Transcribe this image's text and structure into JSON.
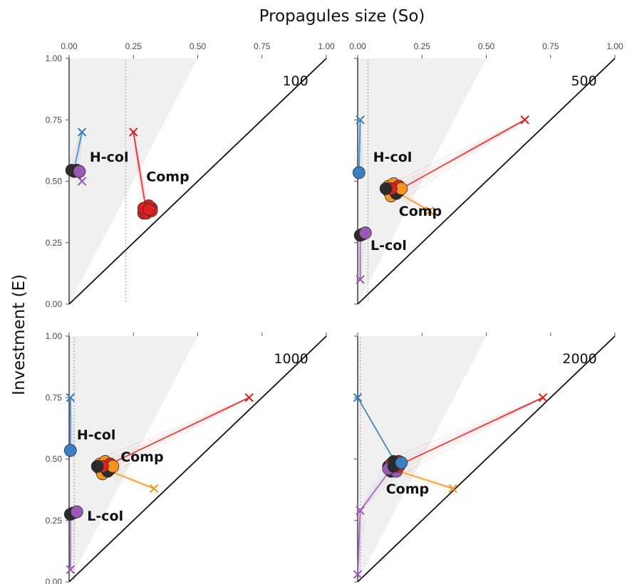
{
  "figure": {
    "xlabel": "Propagules size (So)",
    "ylabel": "Investment (E)"
  },
  "chart_data": {
    "type": "scatter",
    "xlabel": "Propagules size (So)",
    "ylabel": "Investment (E)",
    "xlim": [
      0,
      1
    ],
    "ylim": [
      0,
      1
    ],
    "x_ticks": [
      "0.00",
      "0.25",
      "0.50",
      "0.75",
      "1.00"
    ],
    "y_ticks": [
      "0.00",
      "0.25",
      "0.50",
      "0.75",
      "1.00"
    ],
    "grid": false,
    "colors": {
      "blue": "#3a7fc1",
      "red": "#e02020",
      "orange": "#f7941d",
      "purple": "#9b59b6",
      "dark": "#2b2b2b",
      "shade": "#f0f0f0"
    },
    "panels": [
      {
        "label": "100",
        "show_x_ticks": true,
        "show_y_ticks": true,
        "shade_top_x": 0.5,
        "dotted_x": 0.22,
        "groups": [
          {
            "name": "H-col",
            "label_pos": [
              0.08,
              0.58
            ]
          },
          {
            "name": "Comp",
            "label_pos": [
              0.3,
              0.5
            ]
          }
        ],
        "trajectories": [
          {
            "color": "blue",
            "start": [
              0.05,
              0.7
            ],
            "end": [
              0.02,
              0.55
            ]
          },
          {
            "color": "purple",
            "start": [
              0.05,
              0.5
            ],
            "end": [
              0.03,
              0.54
            ]
          },
          {
            "color": "red",
            "start": [
              0.25,
              0.7
            ],
            "end": [
              0.3,
              0.38
            ]
          }
        ],
        "clusters": [
          {
            "points": [
              [
                0.01,
                0.545
              ],
              [
                0.02,
                0.54
              ],
              [
                0.03,
                0.545
              ],
              [
                0.04,
                0.54
              ]
            ],
            "colors": [
              "dark",
              "dark",
              "dark",
              "purple"
            ]
          },
          {
            "points": [
              [
                0.29,
                0.37
              ],
              [
                0.3,
                0.39
              ],
              [
                0.31,
                0.38
              ],
              [
                0.32,
                0.39
              ],
              [
                0.3,
                0.37
              ],
              [
                0.31,
                0.4
              ],
              [
                0.29,
                0.39
              ],
              [
                0.32,
                0.38
              ],
              [
                0.31,
                0.385
              ]
            ],
            "colors": [
              "red"
            ]
          }
        ]
      },
      {
        "label": "500",
        "show_x_ticks": true,
        "show_y_ticks": false,
        "shade_top_x": 0.5,
        "dotted_x": 0.04,
        "groups": [
          {
            "name": "H-col",
            "label_pos": [
              0.06,
              0.58
            ]
          },
          {
            "name": "Comp",
            "label_pos": [
              0.16,
              0.36
            ]
          },
          {
            "name": "L-col",
            "label_pos": [
              0.05,
              0.22
            ]
          }
        ],
        "trajectories": [
          {
            "color": "blue",
            "start": [
              0.01,
              0.75
            ],
            "end": [
              0.005,
              0.54
            ]
          },
          {
            "color": "red",
            "start": [
              0.65,
              0.75
            ],
            "end": [
              0.17,
              0.47
            ]
          },
          {
            "color": "orange",
            "start": [
              0.28,
              0.38
            ],
            "end": [
              0.16,
              0.45
            ]
          },
          {
            "color": "purple",
            "start": [
              0.01,
              0.1
            ],
            "end": [
              0.01,
              0.28
            ]
          }
        ],
        "clusters": [
          {
            "points": [
              [
                0.005,
                0.535
              ]
            ],
            "colors": [
              "blue"
            ]
          },
          {
            "points": [
              [
                0.12,
                0.46
              ],
              [
                0.13,
                0.48
              ],
              [
                0.14,
                0.45
              ],
              [
                0.15,
                0.47
              ],
              [
                0.16,
                0.46
              ],
              [
                0.13,
                0.44
              ],
              [
                0.12,
                0.48
              ],
              [
                0.15,
                0.45
              ],
              [
                0.14,
                0.49
              ],
              [
                0.16,
                0.48
              ],
              [
                0.17,
                0.47
              ],
              [
                0.13,
                0.47
              ],
              [
                0.11,
                0.47
              ]
            ],
            "colors": [
              "dark",
              "orange",
              "red",
              "orange",
              "red",
              "orange",
              "orange",
              "dark",
              "orange",
              "red",
              "orange",
              "red",
              "dark"
            ]
          },
          {
            "points": [
              [
                0.01,
                0.28
              ],
              [
                0.02,
                0.285
              ],
              [
                0.03,
                0.29
              ]
            ],
            "colors": [
              "dark",
              "dark",
              "purple"
            ]
          }
        ]
      },
      {
        "label": "1000",
        "show_x_ticks": false,
        "show_y_ticks": true,
        "shade_top_x": 0.5,
        "dotted_x": 0.02,
        "groups": [
          {
            "name": "H-col",
            "label_pos": [
              0.03,
              0.58
            ]
          },
          {
            "name": "Comp",
            "label_pos": [
              0.2,
              0.49
            ]
          },
          {
            "name": "L-col",
            "label_pos": [
              0.07,
              0.25
            ]
          }
        ],
        "trajectories": [
          {
            "color": "blue",
            "start": [
              0.005,
              0.75
            ],
            "end": [
              0.005,
              0.54
            ]
          },
          {
            "color": "red",
            "start": [
              0.7,
              0.75
            ],
            "end": [
              0.16,
              0.48
            ]
          },
          {
            "color": "orange",
            "start": [
              0.33,
              0.38
            ],
            "end": [
              0.16,
              0.45
            ]
          },
          {
            "color": "purple",
            "start": [
              0.005,
              0.05
            ],
            "end": [
              0.005,
              0.28
            ]
          }
        ],
        "clusters": [
          {
            "points": [
              [
                0.005,
                0.535
              ]
            ],
            "colors": [
              "blue"
            ]
          },
          {
            "points": [
              [
                0.12,
                0.46
              ],
              [
                0.13,
                0.48
              ],
              [
                0.14,
                0.45
              ],
              [
                0.15,
                0.47
              ],
              [
                0.16,
                0.46
              ],
              [
                0.13,
                0.44
              ],
              [
                0.12,
                0.48
              ],
              [
                0.15,
                0.45
              ],
              [
                0.14,
                0.49
              ],
              [
                0.16,
                0.48
              ],
              [
                0.17,
                0.47
              ],
              [
                0.13,
                0.47
              ],
              [
                0.11,
                0.47
              ]
            ],
            "colors": [
              "dark",
              "orange",
              "red",
              "orange",
              "red",
              "orange",
              "orange",
              "dark",
              "orange",
              "red",
              "orange",
              "red",
              "dark"
            ]
          },
          {
            "points": [
              [
                0.005,
                0.275
              ],
              [
                0.015,
                0.28
              ],
              [
                0.03,
                0.285
              ]
            ],
            "colors": [
              "dark",
              "dark",
              "purple"
            ]
          }
        ]
      },
      {
        "label": "2000",
        "show_x_ticks": false,
        "show_y_ticks": false,
        "shade_top_x": 0.5,
        "dotted_x": 0.01,
        "groups": [
          {
            "name": "Comp",
            "label_pos": [
              0.11,
              0.36
            ]
          }
        ],
        "trajectories": [
          {
            "color": "blue",
            "start": [
              0.0,
              0.75
            ],
            "end": [
              0.15,
              0.48
            ]
          },
          {
            "color": "red",
            "start": [
              0.72,
              0.75
            ],
            "end": [
              0.17,
              0.48
            ]
          },
          {
            "color": "orange",
            "start": [
              0.37,
              0.38
            ],
            "end": [
              0.16,
              0.45
            ]
          },
          {
            "color": "purple",
            "start": [
              0.0,
              0.03
            ],
            "end": [
              0.01,
              0.29
            ]
          },
          {
            "color": "purple",
            "start": [
              0.01,
              0.29
            ],
            "end": [
              0.13,
              0.46
            ]
          }
        ],
        "clusters": [
          {
            "points": [
              [
                0.12,
                0.47
              ],
              [
                0.13,
                0.48
              ],
              [
                0.14,
                0.46
              ],
              [
                0.15,
                0.47
              ],
              [
                0.16,
                0.49
              ],
              [
                0.13,
                0.45
              ],
              [
                0.14,
                0.49
              ],
              [
                0.15,
                0.45
              ],
              [
                0.12,
                0.46
              ],
              [
                0.16,
                0.47
              ],
              [
                0.14,
                0.47
              ],
              [
                0.17,
                0.485
              ]
            ],
            "colors": [
              "dark",
              "red",
              "purple",
              "orange",
              "red",
              "dark",
              "dark",
              "purple",
              "purple",
              "red",
              "dark",
              "blue"
            ]
          }
        ]
      }
    ]
  }
}
